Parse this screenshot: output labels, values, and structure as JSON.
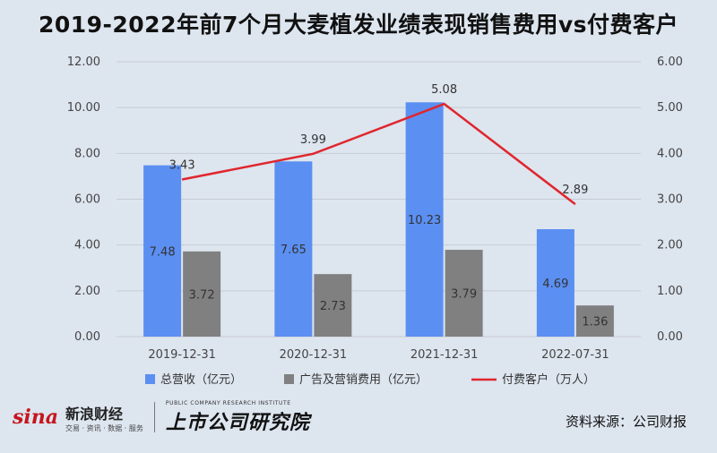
{
  "title": "2019-2022年前7个月大麦植发业绩表现销售费用vs付费客户",
  "chart_data": {
    "type": "bar",
    "categories": [
      "2019-12-31",
      "2020-12-31",
      "2021-12-31",
      "2022-07-31"
    ],
    "series": [
      {
        "name": "总营收（亿元）",
        "type": "bar",
        "axis": "left",
        "values": [
          7.48,
          7.65,
          10.23,
          4.69
        ],
        "labels": [
          "7.48",
          "7.65",
          "10.23",
          "4.69"
        ],
        "color": "#5b8ff2"
      },
      {
        "name": "广告及营销费用（亿元）",
        "type": "bar",
        "axis": "left",
        "values": [
          3.72,
          2.73,
          3.79,
          1.36
        ],
        "labels": [
          "3.72",
          "2.73",
          "3.79",
          "1.36"
        ],
        "color": "#808080"
      },
      {
        "name": "付费客户（万人）",
        "type": "line",
        "axis": "right",
        "values": [
          3.43,
          3.99,
          5.08,
          2.89
        ],
        "labels": [
          "3.43",
          "3.99",
          "5.08",
          "2.89"
        ],
        "color": "#e0262d"
      }
    ],
    "ylim_left": [
      0,
      12
    ],
    "ylim_right": [
      0,
      6
    ],
    "yticks_left": [
      "0.00",
      "2.00",
      "4.00",
      "6.00",
      "8.00",
      "10.00",
      "12.00"
    ],
    "yticks_right": [
      "0.00",
      "1.00",
      "2.00",
      "3.00",
      "4.00",
      "5.00",
      "6.00"
    ],
    "grid": true,
    "legend_position": "bottom"
  },
  "footer": {
    "sina_logo": "sina",
    "sina_name": "新浪财经",
    "sina_sub": "交易 · 资讯 · 数据 · 服务",
    "institute_sub": "PUBLIC COMPANY RESEARCH INSTITUTE",
    "institute_name": "上市公司研究院",
    "source": "资料来源：公司财报"
  },
  "colors": {
    "background": "#dde5ef",
    "bar_revenue": "#5b8ff2",
    "bar_marketing": "#808080",
    "line": "#e0262d"
  }
}
